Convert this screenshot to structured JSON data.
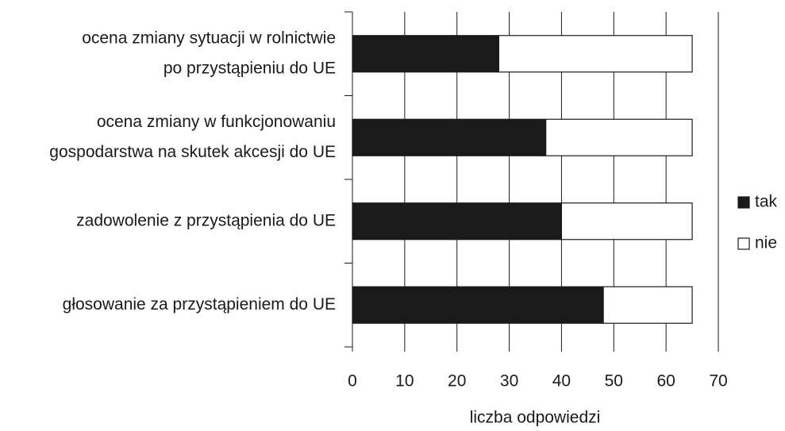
{
  "chart_data": {
    "type": "stacked-barh",
    "categories": [
      [
        "ocena zmiany sytuacji w rolnictwie",
        "po przystąpieniu do UE"
      ],
      [
        "ocena zmiany w funkcjonowaniu",
        "gospodarstwa na skutek akcesji do  UE"
      ],
      [
        "zadowolenie z przystąpienia do UE"
      ],
      [
        "głosowanie za przystąpieniem do UE"
      ]
    ],
    "series": [
      {
        "name": "tak",
        "color": "#1a1a1a",
        "values": [
          28,
          37,
          40,
          48
        ]
      },
      {
        "name": "nie",
        "color": "#ffffff",
        "values": [
          37,
          28,
          25,
          17
        ]
      }
    ],
    "xlim": [
      0,
      70
    ],
    "xticks": [
      0,
      10,
      20,
      30,
      40,
      50,
      60,
      70
    ],
    "xlabel": "liczba odpowiedzi",
    "grid": true,
    "legend": "right"
  }
}
